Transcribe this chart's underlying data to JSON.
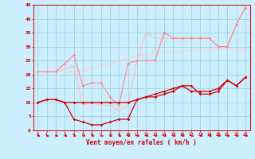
{
  "x": [
    0,
    1,
    2,
    3,
    4,
    5,
    6,
    7,
    8,
    9,
    10,
    11,
    12,
    13,
    14,
    15,
    16,
    17,
    18,
    19,
    20,
    21,
    22,
    23
  ],
  "line1": [
    10,
    11,
    11,
    10,
    10,
    10,
    10,
    10,
    10,
    10,
    10,
    11,
    12,
    13,
    14,
    15,
    16,
    14,
    14,
    14,
    15,
    18,
    16,
    19
  ],
  "line2": [
    10,
    11,
    11,
    10,
    4,
    3,
    2,
    2,
    3,
    4,
    4,
    11,
    12,
    12,
    13,
    14,
    16,
    16,
    13,
    13,
    14,
    18,
    16,
    19
  ],
  "line3": [
    21,
    21,
    21,
    22,
    23,
    9,
    10,
    9,
    9,
    7,
    9,
    25,
    35,
    33,
    33,
    33,
    33,
    33,
    33,
    33,
    30,
    30,
    38,
    44
  ],
  "line4": [
    21,
    21,
    21,
    24,
    27,
    16,
    17,
    17,
    12,
    9,
    24,
    25,
    25,
    25,
    35,
    33,
    33,
    33,
    33,
    33,
    30,
    30,
    38,
    44
  ],
  "line5": [
    21,
    21,
    21,
    21,
    21,
    21,
    22,
    23,
    24,
    25,
    26,
    27,
    27,
    28,
    28,
    28,
    28,
    29,
    29,
    29,
    29,
    29,
    29,
    29
  ],
  "colors": {
    "line1": "#cc0000",
    "line2": "#cc0000",
    "line3": "#ffbbbb",
    "line4": "#ff8888",
    "line5": "#ffcccc"
  },
  "bg_color": "#cceeff",
  "grid_color": "#99ccdd",
  "axis_color": "#cc0000",
  "xlabel": "Vent moyen/en rafales ( km/h )",
  "ylim": [
    0,
    45
  ],
  "xlim": [
    -0.5,
    23.5
  ]
}
